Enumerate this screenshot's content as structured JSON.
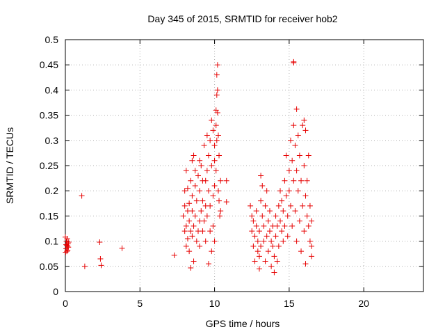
{
  "chart_data": {
    "type": "scatter",
    "title": "Day 345 of 2015, SRMTID for receiver hob2",
    "xlabel": "GPS time / hours",
    "ylabel": "SRMTID / TECUs",
    "xlim": [
      0,
      24
    ],
    "ylim": [
      0,
      0.5
    ],
    "xticks": [
      "0",
      "5",
      "10",
      "15",
      "20"
    ],
    "yticks": [
      "0",
      "0.05",
      "0.1",
      "0.15",
      "0.2",
      "0.25",
      "0.3",
      "0.35",
      "0.4",
      "0.45",
      "0.5"
    ],
    "grid": true,
    "marker": "plus",
    "color": "#e60000",
    "series": [
      {
        "points": [
          [
            0.0,
            0.108
          ],
          [
            0.02,
            0.078
          ],
          [
            0.05,
            0.085
          ],
          [
            0.07,
            0.1
          ],
          [
            0.1,
            0.092
          ],
          [
            0.12,
            0.105
          ],
          [
            0.15,
            0.082
          ],
          [
            0.18,
            0.095
          ],
          [
            0.2,
            0.088
          ],
          [
            0.22,
            0.098
          ],
          [
            0.05,
            0.093
          ],
          [
            0.15,
            0.09
          ],
          [
            0.1,
            0.08
          ],
          [
            1.1,
            0.19
          ],
          [
            1.3,
            0.05
          ],
          [
            2.3,
            0.098
          ],
          [
            2.35,
            0.065
          ],
          [
            2.4,
            0.052
          ],
          [
            3.8,
            0.086
          ],
          [
            7.3,
            0.072
          ],
          [
            7.9,
            0.15
          ],
          [
            8.0,
            0.2
          ],
          [
            8.0,
            0.12
          ],
          [
            8.0,
            0.17
          ],
          [
            8.1,
            0.09
          ],
          [
            8.1,
            0.24
          ],
          [
            8.1,
            0.13
          ],
          [
            8.2,
            0.16
          ],
          [
            8.2,
            0.105
          ],
          [
            8.2,
            0.205
          ],
          [
            8.3,
            0.14
          ],
          [
            8.3,
            0.08
          ],
          [
            8.3,
            0.175
          ],
          [
            8.4,
            0.12
          ],
          [
            8.4,
            0.22
          ],
          [
            8.4,
            0.047
          ],
          [
            8.5,
            0.26
          ],
          [
            8.5,
            0.19
          ],
          [
            8.5,
            0.11
          ],
          [
            8.5,
            0.16
          ],
          [
            8.6,
            0.27
          ],
          [
            8.6,
            0.13
          ],
          [
            8.6,
            0.06
          ],
          [
            8.7,
            0.21
          ],
          [
            8.7,
            0.24
          ],
          [
            8.7,
            0.15
          ],
          [
            8.8,
            0.1
          ],
          [
            8.8,
            0.18
          ],
          [
            8.9,
            0.23
          ],
          [
            8.9,
            0.12
          ],
          [
            9.0,
            0.26
          ],
          [
            9.0,
            0.2
          ],
          [
            9.0,
            0.14
          ],
          [
            9.0,
            0.09
          ],
          [
            9.1,
            0.25
          ],
          [
            9.1,
            0.16
          ],
          [
            9.2,
            0.18
          ],
          [
            9.2,
            0.12
          ],
          [
            9.2,
            0.22
          ],
          [
            9.3,
            0.29
          ],
          [
            9.3,
            0.14
          ],
          [
            9.4,
            0.22
          ],
          [
            9.4,
            0.17
          ],
          [
            9.4,
            0.1
          ],
          [
            9.5,
            0.31
          ],
          [
            9.5,
            0.24
          ],
          [
            9.5,
            0.15
          ],
          [
            9.6,
            0.2
          ],
          [
            9.6,
            0.27
          ],
          [
            9.6,
            0.055
          ],
          [
            9.7,
            0.12
          ],
          [
            9.7,
            0.3
          ],
          [
            9.7,
            0.17
          ],
          [
            9.8,
            0.25
          ],
          [
            9.8,
            0.34
          ],
          [
            9.8,
            0.08
          ],
          [
            9.9,
            0.19
          ],
          [
            9.9,
            0.32
          ],
          [
            9.9,
            0.13
          ],
          [
            10.0,
            0.26
          ],
          [
            10.0,
            0.29
          ],
          [
            10.0,
            0.21
          ],
          [
            10.0,
            0.1
          ],
          [
            10.1,
            0.36
          ],
          [
            10.1,
            0.33
          ],
          [
            10.1,
            0.24
          ],
          [
            10.15,
            0.39
          ],
          [
            10.15,
            0.3
          ],
          [
            10.15,
            0.43
          ],
          [
            10.2,
            0.45
          ],
          [
            10.2,
            0.4
          ],
          [
            10.2,
            0.355
          ],
          [
            10.25,
            0.31
          ],
          [
            10.25,
            0.2
          ],
          [
            10.3,
            0.27
          ],
          [
            10.3,
            0.18
          ],
          [
            10.35,
            0.15
          ],
          [
            10.4,
            0.22
          ],
          [
            10.4,
            0.16
          ],
          [
            10.8,
            0.22
          ],
          [
            10.8,
            0.178
          ],
          [
            12.4,
            0.17
          ],
          [
            12.5,
            0.12
          ],
          [
            12.5,
            0.15
          ],
          [
            12.6,
            0.09
          ],
          [
            12.6,
            0.14
          ],
          [
            12.7,
            0.11
          ],
          [
            12.7,
            0.06
          ],
          [
            12.8,
            0.13
          ],
          [
            12.8,
            0.16
          ],
          [
            12.9,
            0.08
          ],
          [
            12.9,
            0.1
          ],
          [
            13.0,
            0.07
          ],
          [
            13.0,
            0.045
          ],
          [
            13.0,
            0.12
          ],
          [
            13.1,
            0.23
          ],
          [
            13.1,
            0.18
          ],
          [
            13.1,
            0.09
          ],
          [
            13.2,
            0.21
          ],
          [
            13.2,
            0.15
          ],
          [
            13.3,
            0.13
          ],
          [
            13.3,
            0.1
          ],
          [
            13.4,
            0.17
          ],
          [
            13.4,
            0.06
          ],
          [
            13.5,
            0.2
          ],
          [
            13.5,
            0.11
          ],
          [
            13.6,
            0.14
          ],
          [
            13.6,
            0.08
          ],
          [
            13.7,
            0.16
          ],
          [
            13.7,
            0.12
          ],
          [
            13.8,
            0.1
          ],
          [
            13.8,
            0.05
          ],
          [
            13.9,
            0.13
          ],
          [
            13.9,
            0.09
          ],
          [
            14.0,
            0.07
          ],
          [
            14.0,
            0.038
          ],
          [
            14.1,
            0.15
          ],
          [
            14.1,
            0.11
          ],
          [
            14.2,
            0.06
          ],
          [
            14.2,
            0.13
          ],
          [
            14.3,
            0.17
          ],
          [
            14.3,
            0.09
          ],
          [
            14.4,
            0.14
          ],
          [
            14.4,
            0.2
          ],
          [
            14.5,
            0.12
          ],
          [
            14.5,
            0.18
          ],
          [
            14.6,
            0.1
          ],
          [
            14.6,
            0.16
          ],
          [
            14.7,
            0.22
          ],
          [
            14.7,
            0.13
          ],
          [
            14.8,
            0.19
          ],
          [
            14.8,
            0.27
          ],
          [
            14.9,
            0.15
          ],
          [
            14.9,
            0.11
          ],
          [
            15.0,
            0.24
          ],
          [
            15.0,
            0.2
          ],
          [
            15.1,
            0.3
          ],
          [
            15.1,
            0.17
          ],
          [
            15.2,
            0.26
          ],
          [
            15.2,
            0.13
          ],
          [
            15.3,
            0.456
          ],
          [
            15.3,
            0.454
          ],
          [
            15.3,
            0.33
          ],
          [
            15.3,
            0.22
          ],
          [
            15.4,
            0.29
          ],
          [
            15.4,
            0.16
          ],
          [
            15.5,
            0.362
          ],
          [
            15.5,
            0.24
          ],
          [
            15.5,
            0.1
          ],
          [
            15.6,
            0.31
          ],
          [
            15.6,
            0.2
          ],
          [
            15.7,
            0.27
          ],
          [
            15.7,
            0.14
          ],
          [
            15.8,
            0.22
          ],
          [
            15.8,
            0.08
          ],
          [
            15.9,
            0.33
          ],
          [
            15.9,
            0.17
          ],
          [
            16.0,
            0.34
          ],
          [
            16.0,
            0.25
          ],
          [
            16.0,
            0.12
          ],
          [
            16.1,
            0.32
          ],
          [
            16.1,
            0.19
          ],
          [
            16.1,
            0.055
          ],
          [
            16.2,
            0.22
          ],
          [
            16.2,
            0.15
          ],
          [
            16.3,
            0.27
          ],
          [
            16.3,
            0.13
          ],
          [
            16.4,
            0.17
          ],
          [
            16.4,
            0.1
          ],
          [
            16.5,
            0.14
          ],
          [
            16.5,
            0.09
          ],
          [
            16.5,
            0.07
          ]
        ]
      }
    ]
  }
}
